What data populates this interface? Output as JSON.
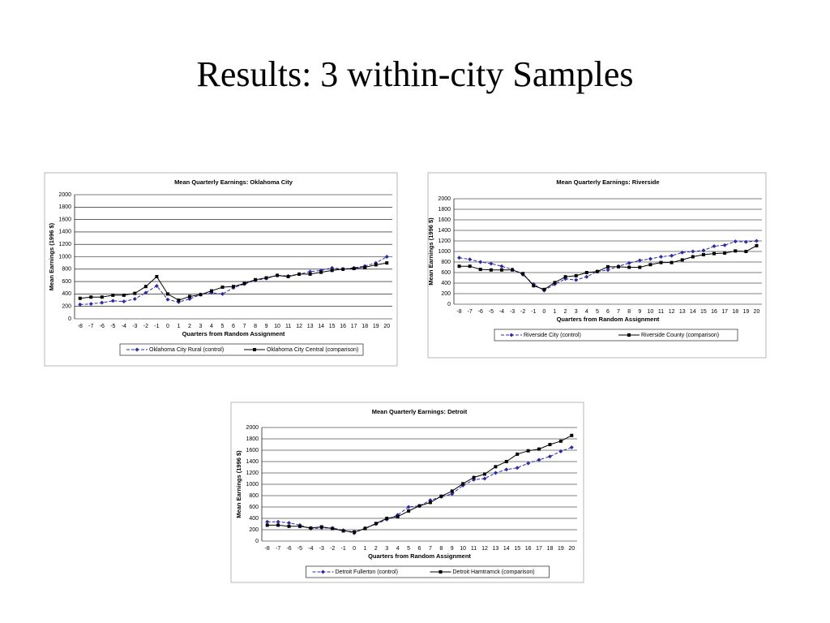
{
  "slide": {
    "title": "Results: 3 within-city Samples"
  },
  "chart_data": [
    {
      "type": "line",
      "title": "Mean Quarterly Earnings: Oklahoma City",
      "x_label": "Quarters from Random Assignment",
      "y_label": "Mean Earnings (1996 $)",
      "categories": [
        "-8",
        "-7",
        "-6",
        "-5",
        "-4",
        "-3",
        "-2",
        "-1",
        "0",
        "1",
        "2",
        "3",
        "4",
        "5",
        "6",
        "7",
        "8",
        "9",
        "10",
        "11",
        "12",
        "13",
        "14",
        "15",
        "16",
        "17",
        "18",
        "19",
        "20"
      ],
      "ylim": [
        0,
        2000
      ],
      "yticks": [
        0,
        200,
        400,
        600,
        800,
        1000,
        1200,
        1400,
        1600,
        1800,
        2000
      ],
      "grid": true,
      "legend": "bottom",
      "series": [
        {
          "name": "Oklahoma City Rural (control)",
          "color": "#2b2ba8",
          "style": "dashed",
          "marker": "diamond",
          "values": [
            230,
            240,
            260,
            290,
            280,
            320,
            420,
            530,
            310,
            270,
            320,
            390,
            420,
            400,
            500,
            560,
            620,
            650,
            700,
            690,
            720,
            760,
            780,
            820,
            800,
            820,
            850,
            900,
            1000
          ]
        },
        {
          "name": "Oklahoma City Central (comparison)",
          "color": "#000000",
          "style": "solid",
          "marker": "square",
          "values": [
            330,
            350,
            350,
            380,
            380,
            410,
            520,
            680,
            400,
            300,
            360,
            390,
            450,
            510,
            520,
            570,
            630,
            660,
            700,
            680,
            720,
            720,
            750,
            780,
            800,
            810,
            830,
            870,
            900
          ]
        }
      ]
    },
    {
      "type": "line",
      "title": "Mean Quarterly Earnings: Riverside",
      "x_label": "Quarters from Random Assignment",
      "y_label": "Mean Earnings (1996 $)",
      "categories": [
        "-8",
        "-7",
        "-6",
        "-5",
        "-4",
        "-3",
        "-2",
        "-1",
        "0",
        "1",
        "2",
        "3",
        "4",
        "5",
        "6",
        "7",
        "8",
        "9",
        "10",
        "11",
        "12",
        "13",
        "14",
        "15",
        "16",
        "17",
        "18",
        "19",
        "20"
      ],
      "ylim": [
        0,
        2000
      ],
      "yticks": [
        0,
        200,
        400,
        600,
        800,
        1000,
        1200,
        1400,
        1600,
        1800,
        2000
      ],
      "grid": true,
      "legend": "bottom",
      "series": [
        {
          "name": "Riverside City (control)",
          "color": "#2b2ba8",
          "style": "dashed",
          "marker": "diamond",
          "values": [
            880,
            850,
            800,
            770,
            720,
            660,
            560,
            380,
            260,
            380,
            480,
            460,
            520,
            620,
            650,
            720,
            780,
            830,
            860,
            900,
            920,
            980,
            1000,
            1020,
            1100,
            1120,
            1190,
            1180,
            1200
          ]
        },
        {
          "name": "Riverside County (comparison)",
          "color": "#000000",
          "style": "solid",
          "marker": "square",
          "values": [
            720,
            720,
            660,
            650,
            650,
            650,
            580,
            350,
            280,
            410,
            520,
            540,
            600,
            620,
            710,
            710,
            700,
            700,
            750,
            790,
            790,
            840,
            900,
            940,
            960,
            970,
            1010,
            1000,
            1110
          ]
        }
      ]
    },
    {
      "type": "line",
      "title": "Mean Quarterly Earnings: Detroit",
      "x_label": "Quarters from Random Assignment",
      "y_label": "Mean Earnings (1996 $)",
      "categories": [
        "-8",
        "-7",
        "-6",
        "-5",
        "-4",
        "-3",
        "-2",
        "-1",
        "0",
        "1",
        "2",
        "3",
        "4",
        "5",
        "6",
        "7",
        "8",
        "9",
        "10",
        "11",
        "12",
        "13",
        "14",
        "15",
        "16",
        "17",
        "18",
        "19",
        "20"
      ],
      "ylim": [
        0,
        2000
      ],
      "yticks": [
        0,
        200,
        400,
        600,
        800,
        1000,
        1200,
        1400,
        1600,
        1800,
        2000
      ],
      "grid": true,
      "legend": "bottom",
      "series": [
        {
          "name": "Detroit Fullerton (control)",
          "color": "#2b2ba8",
          "style": "dashed",
          "marker": "diamond",
          "values": [
            340,
            340,
            320,
            280,
            220,
            230,
            230,
            190,
            140,
            230,
            300,
            380,
            460,
            600,
            620,
            720,
            780,
            830,
            980,
            1080,
            1100,
            1200,
            1260,
            1290,
            1370,
            1430,
            1490,
            1580,
            1650
          ]
        },
        {
          "name": "Detroit Hamtramck (comparison)",
          "color": "#000000",
          "style": "solid",
          "marker": "square",
          "values": [
            280,
            280,
            260,
            260,
            230,
            250,
            220,
            180,
            160,
            220,
            310,
            400,
            430,
            530,
            620,
            680,
            790,
            880,
            1010,
            1120,
            1180,
            1310,
            1400,
            1530,
            1590,
            1620,
            1700,
            1760,
            1860
          ]
        }
      ]
    }
  ]
}
